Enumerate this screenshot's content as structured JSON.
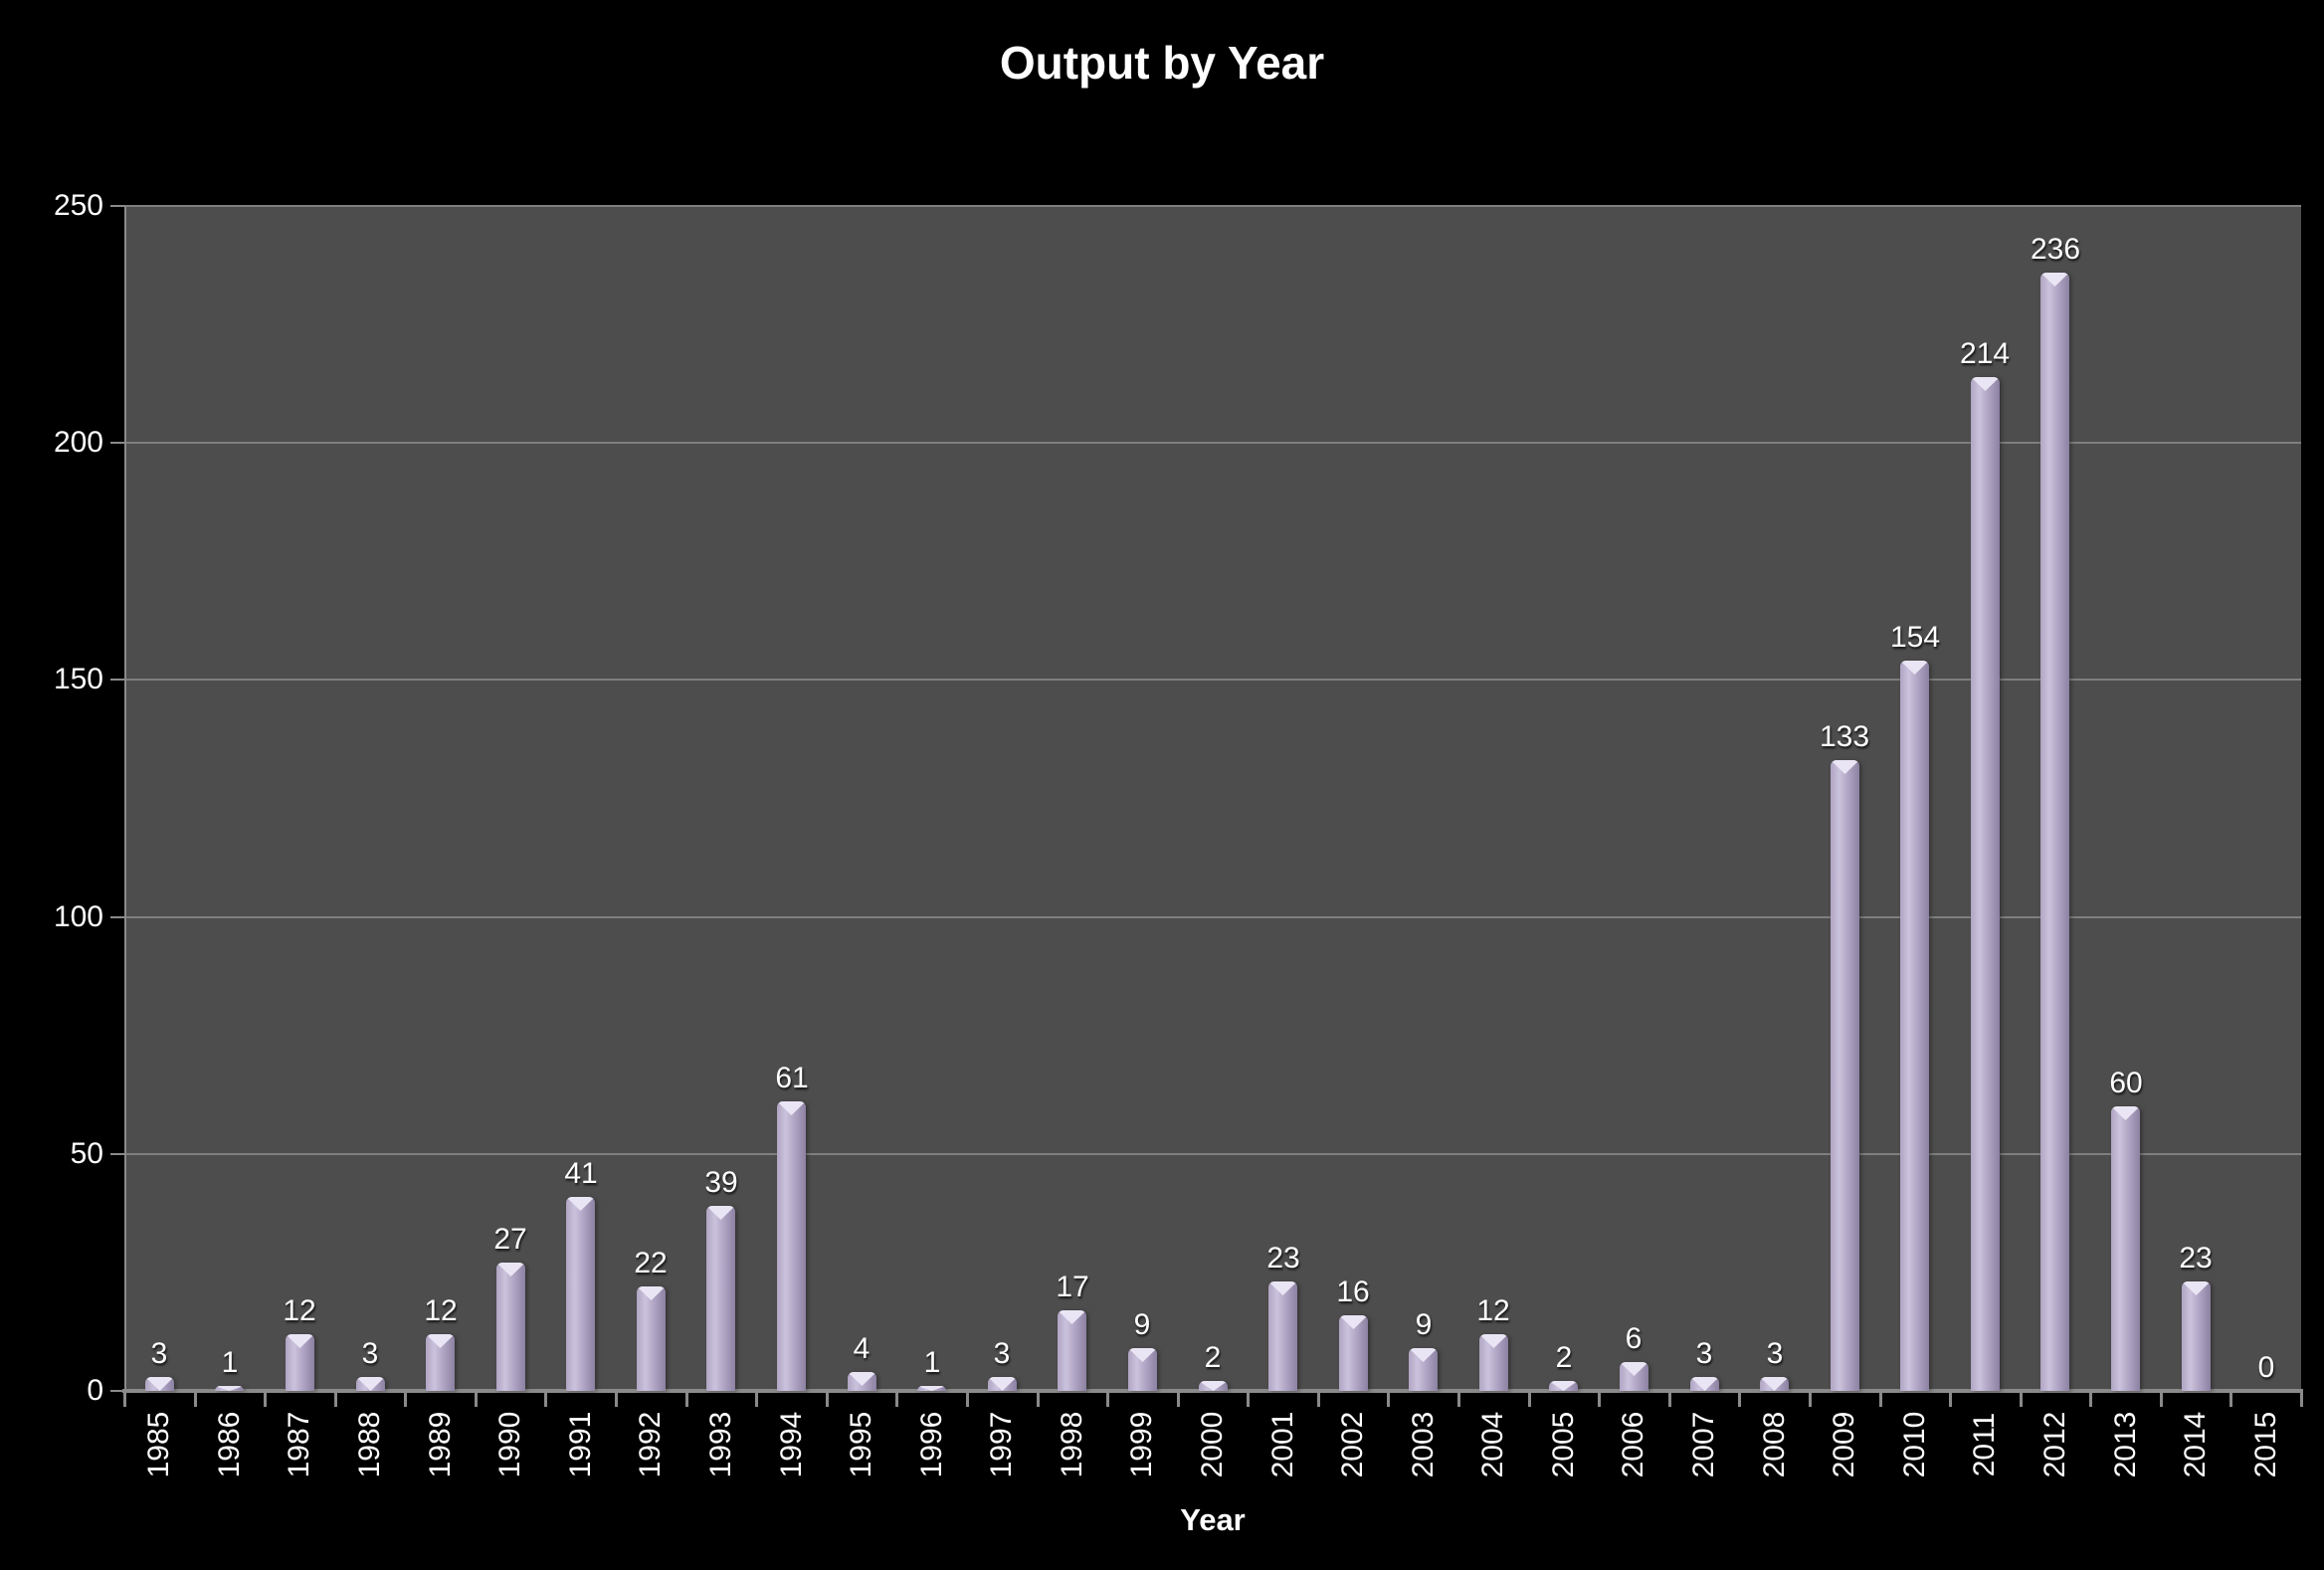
{
  "chart_data": {
    "type": "bar",
    "title": "Output by Year",
    "xlabel": "Year",
    "ylabel": "",
    "ylim": [
      0,
      250
    ],
    "yticks": [
      0,
      50,
      100,
      150,
      200,
      250
    ],
    "grid": true,
    "legend": "none",
    "categories": [
      "1985",
      "1986",
      "1987",
      "1988",
      "1989",
      "1990",
      "1991",
      "1992",
      "1993",
      "1994",
      "1995",
      "1996",
      "1997",
      "1998",
      "1999",
      "2000",
      "2001",
      "2002",
      "2003",
      "2004",
      "2005",
      "2006",
      "2007",
      "2008",
      "2009",
      "2010",
      "2011",
      "2012",
      "2013",
      "2014",
      "2015"
    ],
    "values": [
      3,
      1,
      12,
      3,
      12,
      27,
      41,
      22,
      39,
      61,
      4,
      1,
      3,
      17,
      9,
      2,
      23,
      16,
      9,
      12,
      2,
      6,
      3,
      3,
      133,
      154,
      214,
      236,
      60,
      23,
      0
    ]
  },
  "colors": {
    "background": "#000000",
    "plot_background": "#4d4d4d",
    "gridline": "#7f7f7f",
    "axis_line": "#8a8a8a",
    "text": "#ffffff",
    "bar_edge_light": "#b0a5c3",
    "bar_highlight": "#cbc3dd",
    "bar_mid": "#b5aac8",
    "bar_edge_dark": "#8c81a2",
    "bar_cap": "#eae5f4"
  }
}
